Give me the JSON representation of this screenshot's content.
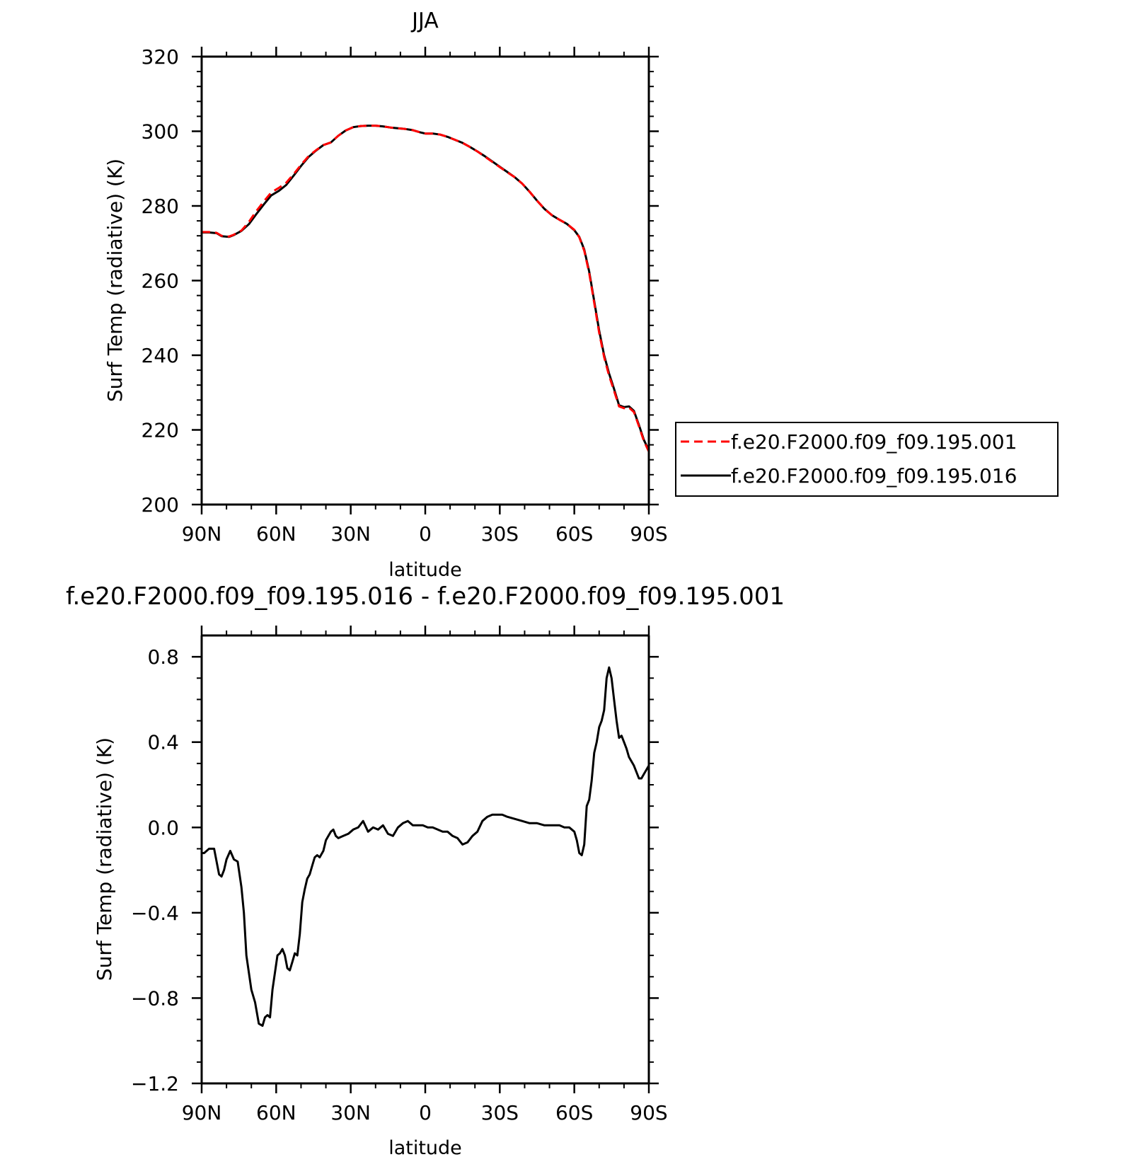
{
  "chart_data": [
    {
      "type": "line",
      "title": "JJA",
      "xlabel": "latitude",
      "ylabel": "Surf Temp (radiative) (K)",
      "xlim": [
        90,
        -90
      ],
      "ylim": [
        200,
        320
      ],
      "x_ticks": [
        {
          "value": 90,
          "label": "90N"
        },
        {
          "value": 60,
          "label": "60N"
        },
        {
          "value": 30,
          "label": "30N"
        },
        {
          "value": 0,
          "label": "0"
        },
        {
          "value": -30,
          "label": "30S"
        },
        {
          "value": -60,
          "label": "60S"
        },
        {
          "value": -90,
          "label": "90S"
        }
      ],
      "y_ticks": [
        {
          "value": 200,
          "label": "200"
        },
        {
          "value": 220,
          "label": "220"
        },
        {
          "value": 240,
          "label": "240"
        },
        {
          "value": 260,
          "label": "260"
        },
        {
          "value": 280,
          "label": "280"
        },
        {
          "value": 300,
          "label": "300"
        },
        {
          "value": 320,
          "label": "320"
        }
      ],
      "legend": "right",
      "series": [
        {
          "name": "f.e20.F2000.f09_f09.195.001",
          "color": "#ff0000",
          "dash": "dashed",
          "x": [
            90,
            87,
            84,
            82,
            79,
            77,
            74,
            71,
            68,
            65,
            62,
            59,
            56,
            53,
            50,
            47,
            44,
            41,
            38,
            35,
            32,
            29,
            26,
            23,
            20,
            17,
            14,
            11,
            8,
            5,
            2,
            0,
            -3,
            -6,
            -9,
            -12,
            -15,
            -18,
            -21,
            -24,
            -27,
            -30,
            -33,
            -36,
            -39,
            -42,
            -45,
            -48,
            -51,
            -54,
            -57,
            -60,
            -62,
            -64,
            -66,
            -68,
            -70,
            -72,
            -74,
            -76,
            -78,
            -80,
            -82,
            -84,
            -86,
            -88,
            -90
          ],
          "y": [
            273.0,
            273.0,
            272.8,
            272.0,
            271.8,
            272.3,
            273.4,
            275.7,
            278.6,
            281.2,
            283.6,
            284.8,
            286.2,
            288.5,
            291.0,
            293.3,
            294.9,
            296.3,
            297.0,
            298.8,
            300.2,
            301.1,
            301.4,
            301.5,
            301.5,
            301.3,
            301.0,
            300.8,
            300.6,
            300.3,
            299.7,
            299.4,
            299.4,
            299.1,
            298.5,
            297.7,
            296.9,
            295.8,
            294.6,
            293.2,
            291.8,
            290.4,
            289.0,
            287.7,
            286.0,
            283.8,
            281.4,
            279.2,
            277.5,
            276.3,
            275.2,
            273.6,
            271.6,
            268.0,
            262.0,
            254.0,
            246.0,
            239.5,
            234.5,
            230.5,
            226.3,
            225.8,
            226.0,
            224.8,
            221.0,
            217.0,
            214.2
          ]
        },
        {
          "name": "f.e20.F2000.f09_f09.195.016",
          "color": "#000000",
          "dash": "solid",
          "x": [
            90,
            87,
            84,
            82,
            79,
            77,
            74,
            71,
            68,
            65,
            62,
            59,
            56,
            53,
            50,
            47,
            44,
            41,
            38,
            35,
            32,
            29,
            26,
            23,
            20,
            17,
            14,
            11,
            8,
            5,
            2,
            0,
            -3,
            -6,
            -9,
            -12,
            -15,
            -18,
            -21,
            -24,
            -27,
            -30,
            -33,
            -36,
            -39,
            -42,
            -45,
            -48,
            -51,
            -54,
            -57,
            -60,
            -62,
            -64,
            -66,
            -68,
            -70,
            -72,
            -74,
            -76,
            -78,
            -80,
            -82,
            -84,
            -86,
            -88,
            -90
          ],
          "y": [
            272.9,
            272.9,
            272.7,
            271.9,
            271.7,
            272.2,
            273.3,
            275.1,
            277.8,
            280.4,
            282.8,
            284.0,
            285.6,
            288.1,
            290.7,
            293.1,
            294.8,
            296.3,
            297.0,
            298.8,
            300.2,
            301.1,
            301.4,
            301.5,
            301.5,
            301.3,
            301.0,
            300.8,
            300.6,
            300.3,
            299.7,
            299.4,
            299.4,
            299.1,
            298.5,
            297.7,
            296.9,
            295.8,
            294.6,
            293.3,
            291.9,
            290.5,
            289.1,
            287.7,
            286.0,
            283.8,
            281.4,
            279.2,
            277.5,
            276.3,
            275.2,
            273.5,
            271.7,
            268.3,
            262.4,
            254.5,
            246.6,
            240.0,
            235.1,
            231.0,
            226.6,
            226.1,
            226.3,
            225.1,
            221.3,
            217.3,
            214.5
          ]
        }
      ]
    },
    {
      "type": "line",
      "title": "f.e20.F2000.f09_f09.195.016 - f.e20.F2000.f09_f09.195.001",
      "xlabel": "latitude",
      "ylabel": "Surf Temp (radiative) (K)",
      "xlim": [
        90,
        -90
      ],
      "ylim": [
        -1.2,
        0.9
      ],
      "x_ticks": [
        {
          "value": 90,
          "label": "90N"
        },
        {
          "value": 60,
          "label": "60N"
        },
        {
          "value": 30,
          "label": "30N"
        },
        {
          "value": 0,
          "label": "0"
        },
        {
          "value": -30,
          "label": "30S"
        },
        {
          "value": -60,
          "label": "60S"
        },
        {
          "value": -90,
          "label": "90S"
        }
      ],
      "y_ticks": [
        {
          "value": -1.2,
          "label": "−1.2"
        },
        {
          "value": -0.8,
          "label": "−0.8"
        },
        {
          "value": -0.4,
          "label": "−0.4"
        },
        {
          "value": 0.0,
          "label": "0.0"
        },
        {
          "value": 0.4,
          "label": "0.4"
        },
        {
          "value": 0.8,
          "label": "0.8"
        }
      ],
      "series": [
        {
          "color": "#000000",
          "dash": "solid",
          "x": [
            90,
            89,
            87,
            85,
            83,
            82,
            81,
            80,
            78.5,
            77,
            75.5,
            74,
            73,
            72,
            71,
            70,
            68.5,
            67,
            65.5,
            64.5,
            63.5,
            62.5,
            61.5,
            60.5,
            59.5,
            58.5,
            57.5,
            56.5,
            55.5,
            54.5,
            53.5,
            52.5,
            51.5,
            50.5,
            49.5,
            48.5,
            47.5,
            46.5,
            45.5,
            44.5,
            43.5,
            42.5,
            41,
            40,
            39,
            38,
            37,
            36,
            35,
            33,
            31,
            29,
            27,
            25,
            23,
            21,
            19,
            17,
            15,
            13,
            11,
            9,
            7,
            5,
            3,
            1,
            -1,
            -3,
            -5,
            -7,
            -9,
            -11,
            -13,
            -15,
            -17,
            -19,
            -21,
            -23,
            -25,
            -27,
            -29,
            -31,
            -33,
            -36,
            -39,
            -42,
            -45,
            -48,
            -51,
            -54,
            -56,
            -58,
            -60,
            -61,
            -62,
            -63,
            -64,
            -65,
            -66,
            -67,
            -68,
            -69,
            -70,
            -71,
            -72,
            -73,
            -74,
            -75,
            -76,
            -77,
            -78,
            -79,
            -80,
            -81,
            -82,
            -84,
            -86,
            -87,
            -88,
            -89,
            -90
          ],
          "y": [
            -0.12,
            -0.12,
            -0.1,
            -0.1,
            -0.22,
            -0.23,
            -0.2,
            -0.15,
            -0.11,
            -0.15,
            -0.16,
            -0.28,
            -0.4,
            -0.6,
            -0.68,
            -0.76,
            -0.82,
            -0.92,
            -0.93,
            -0.89,
            -0.88,
            -0.89,
            -0.76,
            -0.68,
            -0.6,
            -0.59,
            -0.57,
            -0.6,
            -0.66,
            -0.67,
            -0.63,
            -0.59,
            -0.6,
            -0.5,
            -0.35,
            -0.29,
            -0.24,
            -0.22,
            -0.18,
            -0.14,
            -0.13,
            -0.14,
            -0.11,
            -0.06,
            -0.04,
            -0.02,
            -0.01,
            -0.04,
            -0.05,
            -0.04,
            -0.03,
            -0.01,
            0.0,
            0.03,
            -0.02,
            0.0,
            -0.01,
            0.01,
            -0.03,
            -0.04,
            0.0,
            0.02,
            0.03,
            0.01,
            0.01,
            0.01,
            0.0,
            0.0,
            -0.01,
            -0.02,
            -0.02,
            -0.04,
            -0.05,
            -0.08,
            -0.07,
            -0.04,
            -0.02,
            0.03,
            0.05,
            0.06,
            0.06,
            0.06,
            0.05,
            0.04,
            0.03,
            0.02,
            0.02,
            0.01,
            0.01,
            0.01,
            0.0,
            0.0,
            -0.02,
            -0.06,
            -0.12,
            -0.13,
            -0.08,
            0.1,
            0.13,
            0.22,
            0.35,
            0.4,
            0.47,
            0.5,
            0.55,
            0.7,
            0.75,
            0.7,
            0.6,
            0.5,
            0.42,
            0.43,
            0.4,
            0.37,
            0.33,
            0.29,
            0.23,
            0.23,
            0.25,
            0.27,
            0.29
          ]
        }
      ]
    }
  ]
}
